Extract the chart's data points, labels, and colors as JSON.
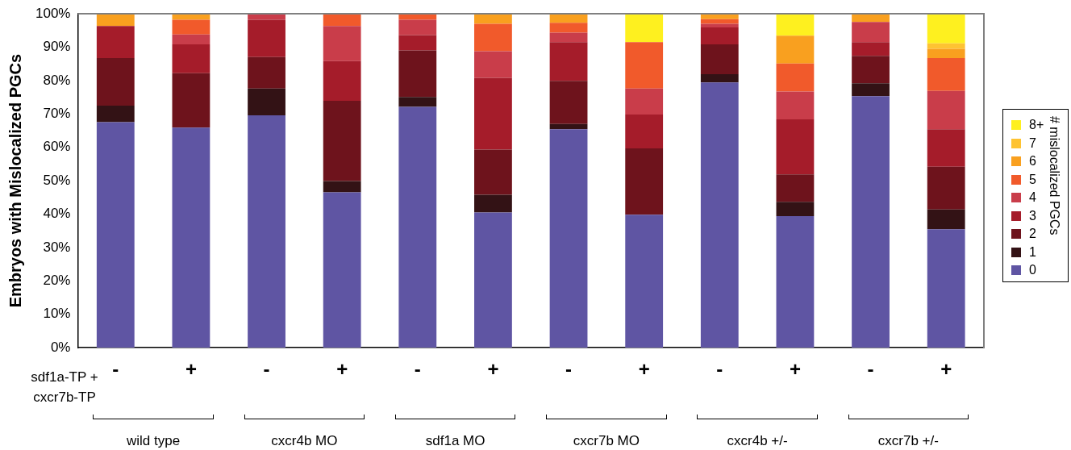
{
  "chart_data": {
    "type": "bar",
    "stacked": true,
    "ylabel": "Embryos with Mislocalized PGCs",
    "legend_title": "# mislocalized PGCs",
    "legend": "right",
    "categories": [
      "-",
      "+",
      "-",
      "+",
      "-",
      "+",
      "-",
      "+",
      "-",
      "+",
      "-",
      "+"
    ],
    "ylim": [
      0,
      100
    ],
    "yticks": [
      {
        "value": 0,
        "label": "0%"
      },
      {
        "value": 10,
        "label": "10%"
      },
      {
        "value": 20,
        "label": "20%"
      },
      {
        "value": 30,
        "label": "30%"
      },
      {
        "value": 40,
        "label": "40%"
      },
      {
        "value": 50,
        "label": "50%"
      },
      {
        "value": 60,
        "label": "60%"
      },
      {
        "value": 70,
        "label": "70%"
      },
      {
        "value": 80,
        "label": "80%"
      },
      {
        "value": 90,
        "label": "90%"
      },
      {
        "value": 100,
        "label": "100%"
      }
    ],
    "series": [
      {
        "name": "0",
        "color": "#5f55a3",
        "values": [
          67.5,
          65.9,
          69.6,
          46.5,
          72.1,
          40.5,
          65.4,
          39.8,
          79.4,
          39.4,
          75.3,
          35.5
        ]
      },
      {
        "name": "1",
        "color": "#331215",
        "values": [
          5,
          0,
          8,
          3.4,
          3,
          5.3,
          1.6,
          0,
          2.5,
          4.3,
          3.9,
          5.9
        ]
      },
      {
        "name": "2",
        "color": "#6e131c",
        "values": [
          14.2,
          16.3,
          9.4,
          24,
          13.9,
          13.5,
          12.9,
          19.9,
          8.9,
          8.2,
          8.2,
          12.8
        ]
      },
      {
        "name": "3",
        "color": "#a51c2a",
        "values": [
          9.6,
          8.6,
          11.2,
          11.9,
          4.6,
          21.5,
          11.6,
          10.1,
          5.1,
          16.5,
          4.1,
          11.2
        ]
      },
      {
        "name": "4",
        "color": "#c93d4a",
        "values": [
          0,
          3,
          1.8,
          10.5,
          4.6,
          8,
          2.8,
          7.8,
          1.1,
          8.3,
          6,
          11.5
        ]
      },
      {
        "name": "5",
        "color": "#f15a2b",
        "values": [
          0,
          4.4,
          0,
          3.7,
          1.8,
          8.2,
          3,
          13.9,
          1.4,
          8.4,
          0,
          9.8
        ]
      },
      {
        "name": "6",
        "color": "#f9a01f",
        "values": [
          3.7,
          1.8,
          0,
          0,
          0,
          3,
          2.7,
          0,
          1.6,
          8.3,
          2.5,
          2.8
        ]
      },
      {
        "name": "7",
        "color": "#fec332",
        "values": [
          0,
          0,
          0,
          0,
          0,
          0,
          0,
          0,
          0,
          0,
          0,
          1.6
        ]
      },
      {
        "name": "8+",
        "color": "#fef01f",
        "values": [
          0,
          0,
          0,
          0,
          0,
          0,
          0,
          8.5,
          0,
          6.6,
          0,
          8.9
        ]
      }
    ],
    "annotations": [
      "sdf1a-TP +\ncxcr7b-TP",
      "wild type",
      "cxcr4b MO",
      "sdf1a MO",
      "cxcr7b MO",
      "cxcr4b +/-",
      "cxcr7b +/-"
    ]
  }
}
